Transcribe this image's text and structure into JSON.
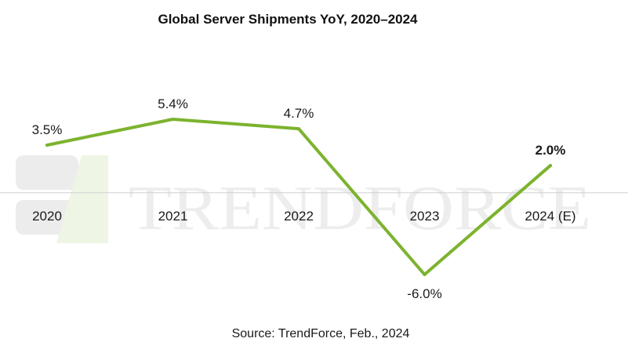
{
  "chart_data": {
    "type": "line",
    "title": "Global Server Shipments YoY, 2020–2024",
    "categories": [
      "2020",
      "2021",
      "2022",
      "2023",
      "2024 (E)"
    ],
    "series": [
      {
        "values": [
          3.5,
          5.4,
          4.7,
          -6.0,
          2.0
        ],
        "labels": [
          "3.5%",
          "5.4%",
          "4.7%",
          "-6.0%",
          "2.0%"
        ],
        "color": "#7cb32e"
      }
    ],
    "label_bold": [
      false,
      false,
      false,
      false,
      true
    ],
    "label_position": [
      "above",
      "above",
      "above",
      "below",
      "above"
    ],
    "ylim": [
      -6.0,
      5.4
    ],
    "grid": false,
    "legend": "none",
    "source": "Source: TrendForce, Feb., 2024"
  },
  "watermark": {
    "logo": "trendforce-logo-icon",
    "text": "TRENDFORCE",
    "color": "#ededed",
    "logo_color": "#eaf2dc"
  }
}
